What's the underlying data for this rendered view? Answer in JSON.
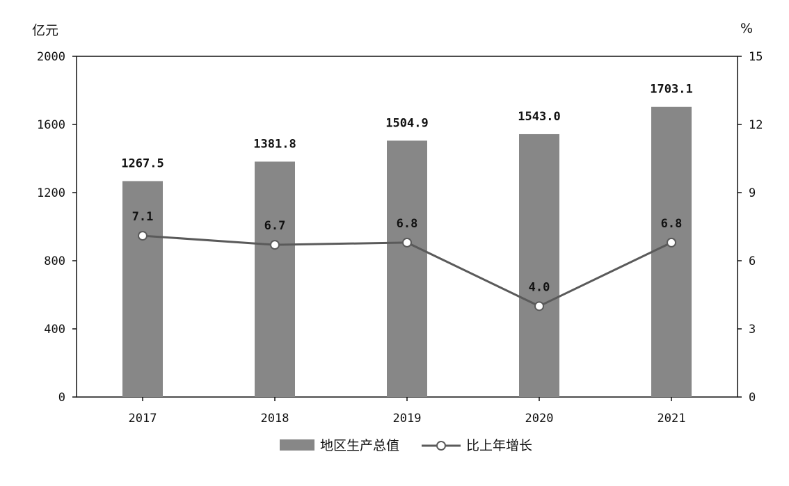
{
  "chart_data": {
    "type": "bar",
    "categories": [
      "2017",
      "2018",
      "2019",
      "2020",
      "2021"
    ],
    "series": [
      {
        "name": "地区生产总值",
        "type": "bar",
        "axis": "left",
        "values": [
          1267.5,
          1381.8,
          1504.9,
          1543.0,
          1703.1
        ],
        "labels": [
          "1267.5",
          "1381.8",
          "1504.9",
          "1543.0",
          "1703.1"
        ],
        "color": "#878787"
      },
      {
        "name": "比上年增长",
        "type": "line",
        "axis": "right",
        "values": [
          7.1,
          6.7,
          6.8,
          4.0,
          6.8
        ],
        "labels": [
          "7.1",
          "6.7",
          "6.8",
          "4.0",
          "6.8"
        ],
        "color": "#5a5a5a",
        "marker": "open-circle"
      }
    ],
    "y_left": {
      "unit": "亿元",
      "range": [
        0,
        2000
      ],
      "ticks": [
        "0",
        "400",
        "800",
        "1200",
        "1600",
        "2000"
      ]
    },
    "y_right": {
      "unit": "%",
      "range": [
        0,
        15
      ],
      "ticks": [
        "0",
        "3",
        "6",
        "9",
        "12",
        "15"
      ]
    },
    "grid": false,
    "legend_position": "bottom"
  }
}
